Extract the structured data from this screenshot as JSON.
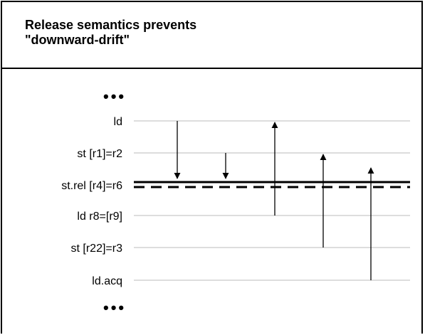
{
  "title": "Release semantics prevents\n\"downward-drift\"",
  "rows": [
    {
      "label": "ld"
    },
    {
      "label": "st [r1]=r2"
    },
    {
      "label": "st.rel [r4]=r6",
      "emphasis": true
    },
    {
      "label": "ld r8=[r9]"
    },
    {
      "label": "st [r22]=r3"
    },
    {
      "label": "ld.acq"
    }
  ],
  "ellipsis": "•••",
  "arrows": [
    {
      "from": "ld",
      "to": "st.rel [r4]=r6",
      "direction": "down",
      "blocked": true
    },
    {
      "from": "st [r1]=r2",
      "to": "st.rel [r4]=r6",
      "direction": "down",
      "blocked": true
    },
    {
      "from": "ld r8=[r9]",
      "to": "ld",
      "direction": "up",
      "blocked": false
    },
    {
      "from": "st [r22]=r3",
      "to": "st [r1]=r2",
      "direction": "up",
      "blocked": false
    },
    {
      "from": "ld.acq",
      "to": "st [r1]=r2",
      "direction": "up",
      "blocked": false
    }
  ],
  "colors": {
    "text": "#000000",
    "grid": "#bbbbbb",
    "border": "#000000"
  }
}
